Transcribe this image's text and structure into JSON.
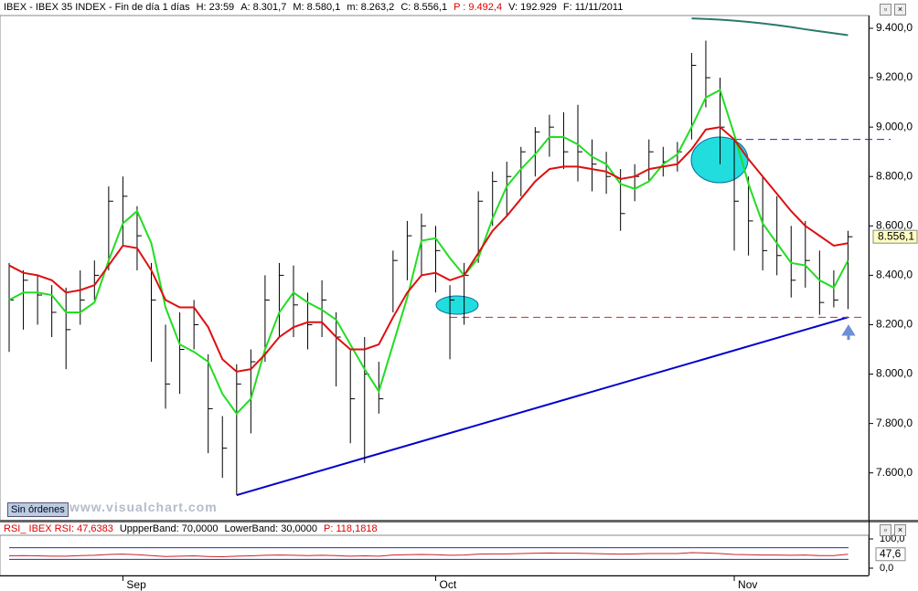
{
  "header": [
    "IBEX - IBEX 35 INDEX - Fin de día 1 días",
    "H: 23:59",
    "A: 8.301,7",
    "M: 8.580,1",
    "m: 8.263,2",
    "C: 8.556,1",
    "P : 9.492,4",
    "V: 192.929",
    "F: 11/11/2011"
  ],
  "button": "Sin órdenes",
  "watermark": "www.visualchart.com",
  "chart_data": [
    {
      "type": "ohlc",
      "categories": [
        null,
        null,
        null,
        null,
        null,
        null,
        null,
        null,
        "Sep",
        null,
        null,
        null,
        null,
        null,
        null,
        null,
        null,
        null,
        null,
        null,
        null,
        null,
        null,
        null,
        null,
        null,
        null,
        null,
        null,
        null,
        "Oct",
        null,
        null,
        null,
        null,
        null,
        null,
        null,
        null,
        null,
        null,
        null,
        null,
        null,
        null,
        null,
        null,
        null,
        null,
        null,
        null,
        "Nov",
        null,
        null,
        null,
        null,
        null,
        null,
        null,
        null
      ],
      "high": [
        8450,
        8420,
        8400,
        8360,
        8350,
        8420,
        8460,
        8760,
        8800,
        8680,
        8450,
        8200,
        8250,
        8300,
        8080,
        7830,
        8040,
        8100,
        8400,
        8450,
        8440,
        8330,
        8380,
        8250,
        8100,
        8150,
        8050,
        8500,
        8620,
        8650,
        8600,
        8360,
        8450,
        8740,
        8820,
        8860,
        8920,
        9000,
        9050,
        9060,
        9090,
        8950,
        8900,
        8830,
        8850,
        8950,
        8920,
        8940,
        9300,
        9350,
        9200,
        8950,
        8800,
        8800,
        8720,
        8600,
        8620,
        8500,
        8420,
        8580.1
      ],
      "low": [
        8090,
        8180,
        8200,
        8150,
        8020,
        8200,
        8300,
        8420,
        8520,
        8420,
        8050,
        7860,
        7920,
        8100,
        7680,
        7580,
        7510,
        7760,
        8050,
        8150,
        8150,
        8100,
        8150,
        7950,
        7720,
        7640,
        7840,
        8250,
        8380,
        8400,
        8330,
        8060,
        8200,
        8450,
        8600,
        8640,
        8720,
        8800,
        8880,
        8830,
        8780,
        8740,
        8730,
        8580,
        8700,
        8780,
        8800,
        8820,
        8950,
        9080,
        8850,
        8500,
        8480,
        8420,
        8400,
        8310,
        8350,
        8240,
        8270,
        8263.2
      ],
      "close": [
        8300,
        8380,
        8320,
        8250,
        8180,
        8300,
        8400,
        8700,
        8720,
        8560,
        8300,
        7960,
        8100,
        8200,
        7860,
        7700,
        7960,
        8050,
        8300,
        8400,
        8280,
        8200,
        8300,
        8150,
        7900,
        8000,
        7900,
        8460,
        8560,
        8600,
        8500,
        8300,
        8400,
        8700,
        8780,
        8800,
        8900,
        8980,
        9000,
        8900,
        8900,
        8850,
        8800,
        8650,
        8800,
        8900,
        8860,
        8900,
        9250,
        9200,
        9000,
        8700,
        8620,
        8500,
        8480,
        8380,
        8460,
        8290,
        8300,
        8556.1
      ],
      "bar_color": "#000000",
      "series": [
        {
          "color": "#22dd22",
          "values": [
            8300,
            8330,
            8330,
            8320,
            8250,
            8250,
            8290,
            8460,
            8610,
            8660,
            8530,
            8270,
            8120,
            8090,
            8050,
            7920,
            7840,
            7900,
            8100,
            8250,
            8330,
            8290,
            8260,
            8220,
            8120,
            8020,
            7930,
            8120,
            8310,
            8540,
            8550,
            8470,
            8400,
            8470,
            8630,
            8760,
            8830,
            8890,
            8960,
            8960,
            8930,
            8880,
            8850,
            8770,
            8750,
            8780,
            8850,
            8890,
            9000,
            9120,
            9150,
            8970,
            8770,
            8610,
            8530,
            8450,
            8440,
            8380,
            8350,
            8460
          ]
        },
        {
          "color": "#dd1111",
          "values": [
            8440,
            8410,
            8400,
            8380,
            8330,
            8340,
            8360,
            8440,
            8520,
            8510,
            8420,
            8300,
            8270,
            8270,
            8190,
            8060,
            8010,
            8020,
            8080,
            8150,
            8190,
            8210,
            8210,
            8150,
            8100,
            8100,
            8120,
            8230,
            8330,
            8400,
            8410,
            8380,
            8400,
            8490,
            8580,
            8640,
            8710,
            8780,
            8830,
            8840,
            8840,
            8830,
            8820,
            8790,
            8800,
            8830,
            8840,
            8850,
            8910,
            8990,
            9000,
            8950,
            8870,
            8800,
            8730,
            8660,
            8600,
            8560,
            8520,
            8530
          ]
        },
        {
          "color": "#2a7a6a",
          "values": [
            null,
            null,
            null,
            null,
            null,
            null,
            null,
            null,
            null,
            null,
            null,
            null,
            null,
            null,
            null,
            null,
            null,
            null,
            null,
            null,
            null,
            null,
            null,
            null,
            null,
            null,
            null,
            null,
            null,
            null,
            null,
            null,
            null,
            null,
            null,
            null,
            null,
            null,
            null,
            null,
            null,
            null,
            null,
            null,
            null,
            null,
            null,
            null,
            9440,
            9438,
            9435,
            9431,
            9426,
            9420,
            9413,
            9405,
            9396,
            9388,
            9380,
            9372
          ]
        }
      ],
      "trendlines": [
        {
          "from": [
            16,
            7510
          ],
          "to": [
            59,
            8230
          ],
          "color": "#0000cc",
          "dashed": false
        },
        {
          "from": [
            31,
            8230
          ],
          "to": [
            60,
            8230
          ],
          "color": "#dd2222",
          "dashed": true
        },
        {
          "from": [
            51,
            8950
          ],
          "to": [
            62,
            8950
          ],
          "color": "#2222cc",
          "dashed": true
        }
      ],
      "ylim": [
        7414,
        9448
      ],
      "yticks": [
        {
          "value": 7600,
          "label": "7.600,0"
        },
        {
          "value": 7800,
          "label": "7.800,0"
        },
        {
          "value": 8000,
          "label": "8.000,0"
        },
        {
          "value": 8200,
          "label": "8.200,0"
        },
        {
          "value": 8400,
          "label": "8.400,0"
        },
        {
          "value": 8600,
          "label": "8.600,0"
        },
        {
          "value": 8800,
          "label": "8.800,0"
        },
        {
          "value": 9000,
          "label": "9.000,0"
        },
        {
          "value": 9200,
          "label": "9.200,0"
        },
        {
          "value": 9400,
          "label": "9.400,0"
        }
      ],
      "last_label": {
        "value": 8556.1,
        "label": "8.556,1"
      },
      "grid": false
    },
    {
      "type": "line",
      "title_parts": [
        "RSI_ IBEX RSI: 47,6383",
        "UppperBand: 70,0000",
        "LowerBand: 30,0000",
        "P: 118,1818"
      ],
      "color": "#cc2222",
      "band_color": "#2233aa",
      "values": [
        42,
        43,
        42,
        41,
        41,
        43,
        44,
        47,
        48,
        46,
        43,
        40,
        41,
        42,
        40,
        39,
        41,
        42,
        44,
        45,
        44,
        43,
        44,
        43,
        41,
        42,
        41,
        45,
        46,
        47,
        46,
        44,
        45,
        48,
        49,
        49,
        50,
        51,
        52,
        51,
        51,
        50,
        49,
        48,
        49,
        50,
        50,
        50,
        53,
        52,
        50,
        47,
        46,
        45,
        45,
        44,
        45,
        43,
        43,
        47.6
      ],
      "bands": [
        70,
        30
      ],
      "ylim": [
        -25,
        150
      ],
      "yticks": [
        {
          "value": 100,
          "label": "100,0"
        },
        {
          "value": 0,
          "label": "0,0"
        }
      ],
      "last_label": {
        "value": 47.6,
        "label": "47,6"
      }
    }
  ]
}
